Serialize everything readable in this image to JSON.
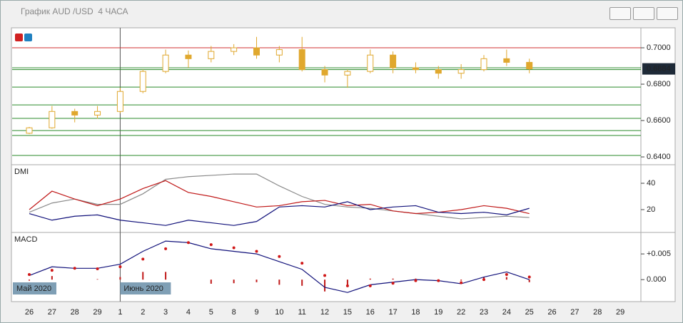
{
  "window": {
    "title": "График AUD /USD  4 ЧАСА"
  },
  "chart_data": [
    {
      "type": "candlestick",
      "color": "#e0a82e",
      "categories": [
        "26",
        "27",
        "28",
        "29",
        "1",
        "2",
        "3",
        "4",
        "5",
        "8",
        "9",
        "10",
        "11",
        "12",
        "15",
        "16",
        "17",
        "18",
        "19",
        "22",
        "23",
        "24",
        "25",
        "26",
        "27",
        "28",
        "29"
      ],
      "open": [
        0.653,
        0.656,
        0.665,
        0.663,
        0.665,
        0.676,
        0.687,
        0.696,
        0.694,
        0.698,
        0.7,
        0.696,
        0.699,
        0.688,
        0.685,
        0.687,
        0.696,
        0.689,
        0.688,
        0.686,
        0.688,
        0.694,
        0.692,
        null,
        null,
        null,
        null
      ],
      "high": [
        0.6565,
        0.668,
        0.6665,
        0.668,
        0.678,
        0.688,
        0.699,
        0.6985,
        0.701,
        0.702,
        0.706,
        0.701,
        0.706,
        0.69,
        0.688,
        0.699,
        0.698,
        0.692,
        0.69,
        0.691,
        0.696,
        0.699,
        0.694,
        null,
        null,
        null,
        null
      ],
      "low": [
        0.6525,
        0.6555,
        0.659,
        0.661,
        0.664,
        0.675,
        0.686,
        0.689,
        0.692,
        0.696,
        0.694,
        0.692,
        0.687,
        0.681,
        0.678,
        0.686,
        0.686,
        0.686,
        0.683,
        0.683,
        0.687,
        0.69,
        0.686,
        null,
        null,
        null,
        null
      ],
      "close": [
        0.656,
        0.665,
        0.663,
        0.665,
        0.676,
        0.687,
        0.696,
        0.694,
        0.698,
        0.7,
        0.696,
        0.699,
        0.688,
        0.685,
        0.687,
        0.696,
        0.689,
        0.688,
        0.686,
        0.688,
        0.694,
        0.692,
        0.6884,
        null,
        null,
        null,
        null
      ],
      "levels": [
        {
          "value": 0.7,
          "color": "#d03030"
        },
        {
          "value": 0.689,
          "color": "#2a8a2a"
        },
        {
          "value": 0.688,
          "color": "#2a8a2a"
        },
        {
          "value": 0.6784,
          "color": "#2a8a2a"
        },
        {
          "value": 0.6686,
          "color": "#2a8a2a"
        },
        {
          "value": 0.6612,
          "color": "#2a8a2a"
        },
        {
          "value": 0.6545,
          "color": "#2a8a2a"
        },
        {
          "value": 0.6518,
          "color": "#2a8a2a"
        },
        {
          "value": 0.6408,
          "color": "#2a8a2a"
        }
      ],
      "ylim": [
        0.6365,
        0.7102
      ],
      "yticks": [
        {
          "value": 0.64,
          "label": "0.6400"
        },
        {
          "value": 0.66,
          "label": "0.6600"
        },
        {
          "value": 0.68,
          "label": "0.6800"
        },
        {
          "value": 0.7,
          "label": "0.7000"
        }
      ],
      "last_price": 0.6884,
      "date_labels": [
        "Май 2020",
        "Июнь 2020"
      ]
    },
    {
      "type": "line",
      "title": "DMI",
      "ylim": [
        4.3,
        53
      ],
      "yticks": [
        20,
        40
      ],
      "series": [
        {
          "style": "line",
          "color": "#8a8a8a",
          "values": [
            18,
            25,
            28,
            24,
            24,
            32,
            43,
            45,
            46,
            47,
            47,
            38,
            30,
            24,
            22,
            21,
            19,
            17,
            15,
            13,
            14,
            15,
            14,
            null,
            null,
            null,
            null
          ]
        },
        {
          "style": "line",
          "color": "#c01818",
          "values": [
            20,
            34,
            28,
            23,
            28,
            36,
            42,
            33,
            30,
            26,
            22,
            23,
            26,
            27,
            23,
            24,
            19,
            17,
            18,
            20,
            23,
            21,
            17,
            null,
            null,
            null,
            null
          ]
        },
        {
          "style": "line",
          "color": "#10107a",
          "values": [
            17,
            12,
            15,
            16,
            12,
            10,
            8,
            12,
            10,
            8,
            11,
            22,
            23,
            22,
            26,
            20,
            22,
            23,
            18,
            17,
            18,
            16,
            21,
            null,
            null,
            null,
            null
          ]
        }
      ]
    },
    {
      "type": "line",
      "title": "MACD",
      "ylim": [
        -0.004,
        0.0089
      ],
      "yticks": [
        {
          "value": 0.005,
          "label": "+0.005"
        },
        {
          "value": 0,
          "label": "0.000"
        }
      ],
      "series": [
        {
          "style": "bars",
          "color": "#c01818",
          "values": [
            -0.0002,
            0.0007,
            0,
            0.0001,
            0.0005,
            0.0015,
            0.0015,
            0,
            -0.0008,
            -0.0007,
            -0.0005,
            -0.001,
            -0.0012,
            -0.0023,
            -0.0013,
            0.0002,
            0.0002,
            0.0002,
            0,
            -0.0002,
            0.0005,
            0.0005,
            -0.0005,
            null,
            null,
            null,
            null
          ]
        },
        {
          "style": "line",
          "color": "#10107a",
          "values": [
            0.0008,
            0.0025,
            0.0022,
            0.0022,
            0.003,
            0.0055,
            0.0075,
            0.0072,
            0.006,
            0.0055,
            0.005,
            0.0035,
            0.002,
            -0.0015,
            -0.0025,
            -0.001,
            -0.0005,
            0,
            -0.0002,
            -0.0008,
            0.0005,
            0.0015,
            0,
            null,
            null,
            null,
            null
          ]
        },
        {
          "style": "dots",
          "color": "#d01818",
          "values": [
            0.001,
            0.0018,
            0.0022,
            0.0021,
            0.0025,
            0.004,
            0.006,
            0.0072,
            0.0068,
            0.0062,
            0.0055,
            0.0045,
            0.0032,
            0.0008,
            -0.0012,
            -0.0012,
            -0.0007,
            -0.0002,
            -0.0002,
            -0.0006,
            0,
            0.001,
            0.0005,
            null,
            null,
            null,
            null
          ]
        }
      ]
    }
  ]
}
